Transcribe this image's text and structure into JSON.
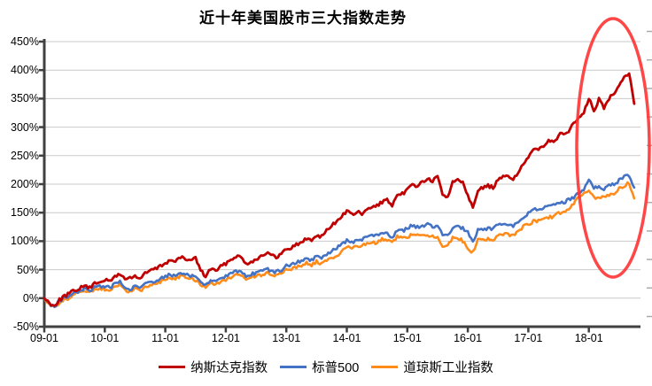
{
  "title": "近十年美国股市三大指数走势",
  "colors": {
    "nasdaq": "#C00000",
    "sp500": "#4472C4",
    "dow": "#FF8C1A",
    "gridline": "#C9C9C9",
    "axis": "#404040",
    "annotation": "#FF3333",
    "right_edge_ticks": "#ABABAB",
    "background": "#FFFFFF"
  },
  "y_axis": {
    "ticks": [
      "450%",
      "400%",
      "350%",
      "300%",
      "250%",
      "200%",
      "150%",
      "100%",
      "50%",
      "0%",
      "-50%"
    ]
  },
  "x_axis": {
    "ticks": [
      "09-01",
      "10-01",
      "11-01",
      "12-01",
      "13-01",
      "14-01",
      "15-01",
      "16-01",
      "17-01",
      "18-01"
    ]
  },
  "legend": [
    {
      "label": "纳斯达克指数",
      "color": "#C00000"
    },
    {
      "label": "标普500",
      "color": "#4472C4"
    },
    {
      "label": "道琼斯工业指数",
      "color": "#FF8C1A"
    }
  ],
  "chart_data": {
    "type": "line",
    "title": "近十年美国股市三大指数走势",
    "xlabel": "",
    "ylabel": "",
    "unit": "%",
    "x_start": "2009-01",
    "x_interval_months": 1,
    "x_tick_labels": [
      "09-01",
      "10-01",
      "11-01",
      "12-01",
      "13-01",
      "14-01",
      "15-01",
      "16-01",
      "17-01",
      "18-01"
    ],
    "ylim": [
      -50,
      450
    ],
    "y_tick_step_percent": 50,
    "grid": "horizontal",
    "legend_position": "bottom",
    "series": [
      {
        "name": "纳斯达克指数",
        "color": "#C00000",
        "values": [
          0,
          -8,
          -13,
          -3,
          4,
          8,
          14,
          17,
          22,
          18,
          25,
          30,
          32,
          29,
          38,
          43,
          33,
          36,
          39,
          34,
          43,
          49,
          51,
          56,
          62,
          66,
          65,
          71,
          69,
          66,
          71,
          49,
          38,
          52,
          48,
          55,
          61,
          68,
          74,
          72,
          61,
          64,
          68,
          74,
          80,
          75,
          71,
          78,
          86,
          89,
          94,
          97,
          105,
          101,
          111,
          108,
          119,
          127,
          135,
          144,
          153,
          146,
          151,
          148,
          154,
          160,
          162,
          169,
          172,
          162,
          178,
          183,
          190,
          200,
          197,
          204,
          209,
          205,
          213,
          182,
          178,
          203,
          209,
          205,
          180,
          161,
          190,
          193,
          197,
          194,
          207,
          212,
          214,
          210,
          220,
          235,
          245,
          260,
          263,
          268,
          278,
          272,
          286,
          289,
          293,
          306,
          317,
          323,
          352,
          327,
          349,
          333,
          351,
          361,
          374,
          389,
          394,
          341
        ]
      },
      {
        "name": "标普500",
        "color": "#4472C4",
        "values": [
          0,
          -9,
          -15,
          -5,
          1,
          3,
          10,
          13,
          17,
          13,
          18,
          21,
          20,
          18,
          26,
          29,
          19,
          15,
          21,
          17,
          25,
          29,
          29,
          35,
          38,
          41,
          40,
          44,
          42,
          40,
          38,
          28,
          22,
          32,
          30,
          34,
          38,
          43,
          47,
          45,
          38,
          42,
          44,
          47,
          51,
          48,
          46,
          49,
          57,
          59,
          63,
          65,
          70,
          67,
          74,
          71,
          77,
          83,
          88,
          95,
          101,
          97,
          103,
          104,
          107,
          111,
          109,
          116,
          113,
          107,
          119,
          118,
          122,
          128,
          125,
          128,
          129,
          126,
          128,
          112,
          109,
          124,
          125,
          122,
          116,
          100,
          119,
          121,
          122,
          121,
          128,
          130,
          129,
          126,
          131,
          140,
          150,
          156,
          153,
          158,
          161,
          163,
          166,
          168,
          172,
          177,
          184,
          190,
          208,
          192,
          196,
          191,
          198,
          200,
          207,
          213,
          215,
          194
        ]
      },
      {
        "name": "道琼斯工业指数",
        "color": "#FF8C1A",
        "values": [
          0,
          -10,
          -17,
          -7,
          -2,
          0,
          7,
          10,
          13,
          10,
          15,
          17,
          16,
          14,
          21,
          24,
          15,
          11,
          17,
          13,
          20,
          24,
          24,
          29,
          32,
          35,
          34,
          38,
          36,
          34,
          32,
          24,
          18,
          27,
          25,
          30,
          33,
          37,
          41,
          39,
          33,
          37,
          39,
          41,
          45,
          42,
          40,
          42,
          50,
          51,
          55,
          57,
          61,
          58,
          64,
          60,
          65,
          70,
          75,
          81,
          91,
          86,
          92,
          93,
          96,
          99,
          97,
          103,
          102,
          96,
          107,
          106,
          107,
          113,
          109,
          111,
          112,
          108,
          108,
          93,
          91,
          105,
          106,
          100,
          88,
          80,
          102,
          104,
          104,
          103,
          110,
          112,
          111,
          109,
          117,
          125,
          130,
          135,
          136,
          139,
          141,
          144,
          148,
          152,
          158,
          167,
          178,
          185,
          190,
          176,
          178,
          176,
          182,
          184,
          192,
          197,
          203,
          175
        ]
      }
    ],
    "annotations": [
      {
        "type": "ellipse",
        "note": "红色椭圆圈出2018年段走势",
        "color": "#FF3333"
      }
    ]
  }
}
